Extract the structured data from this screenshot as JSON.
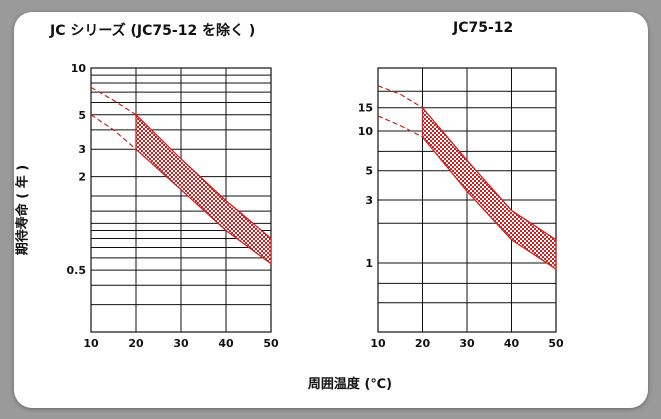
{
  "x_axis_title": "周囲温度 (℃)",
  "y_axis_title": "期待寿命 ( 年 )",
  "colors": {
    "band": "#d02020",
    "grid": "#111111",
    "frame": "#ffffff",
    "background": "#9a9a9a"
  },
  "chart_data": [
    {
      "type": "area",
      "title": "JC シリーズ (JC75-12 を除く )",
      "xlabel": "周囲温度 (℃)",
      "ylabel": "期待寿命 ( 年 )",
      "scale_y": "log",
      "xlim": [
        10,
        50
      ],
      "ylim": [
        0.2,
        10
      ],
      "x_ticks": [
        "10",
        "20",
        "30",
        "40",
        "50"
      ],
      "y_tick_labels": [
        {
          "value": 10,
          "label": "10"
        },
        {
          "value": 5,
          "label": "5"
        },
        {
          "value": 3,
          "label": "3"
        },
        {
          "value": 2,
          "label": "2"
        },
        {
          "value": 0.5,
          "label": "0.5"
        }
      ],
      "y_gridlines": [
        10,
        9,
        8,
        7,
        6,
        5,
        4,
        3,
        2,
        1.5,
        1.2,
        1,
        0.9,
        0.8,
        0.7,
        0.6,
        0.5,
        0.4,
        0.3,
        0.2
      ],
      "grid": true,
      "band": {
        "x": [
          20,
          30,
          40,
          50
        ],
        "upper": [
          5,
          2.6,
          1.4,
          0.8
        ],
        "lower": [
          3,
          1.65,
          0.9,
          0.55
        ]
      },
      "extrapolated": {
        "x": [
          10,
          15,
          20
        ],
        "upper": [
          7.5,
          6.2,
          5
        ],
        "lower": [
          5,
          4,
          3
        ]
      }
    },
    {
      "type": "area",
      "title": "JC75-12",
      "xlabel": "周囲温度 (℃)",
      "ylabel": "",
      "scale_y": "log",
      "xlim": [
        10,
        50
      ],
      "ylim": [
        0.3,
        30
      ],
      "x_ticks": [
        "10",
        "20",
        "30",
        "40",
        "50"
      ],
      "y_tick_labels": [
        {
          "value": 15,
          "label": "15"
        },
        {
          "value": 10,
          "label": "10"
        },
        {
          "value": 5,
          "label": "5"
        },
        {
          "value": 3,
          "label": "3"
        },
        {
          "value": 1,
          "label": "1"
        }
      ],
      "y_gridlines": [
        30,
        20,
        15,
        10,
        7,
        5,
        3,
        2,
        1,
        0.7,
        0.5,
        0.3
      ],
      "grid": true,
      "band": {
        "x": [
          20,
          30,
          40,
          50
        ],
        "upper": [
          15,
          6,
          2.5,
          1.5
        ],
        "lower": [
          9,
          3.5,
          1.5,
          0.9
        ]
      },
      "extrapolated": {
        "x": [
          10,
          15,
          20
        ],
        "upper": [
          22,
          19,
          15
        ],
        "lower": [
          13,
          11,
          9
        ]
      }
    }
  ]
}
